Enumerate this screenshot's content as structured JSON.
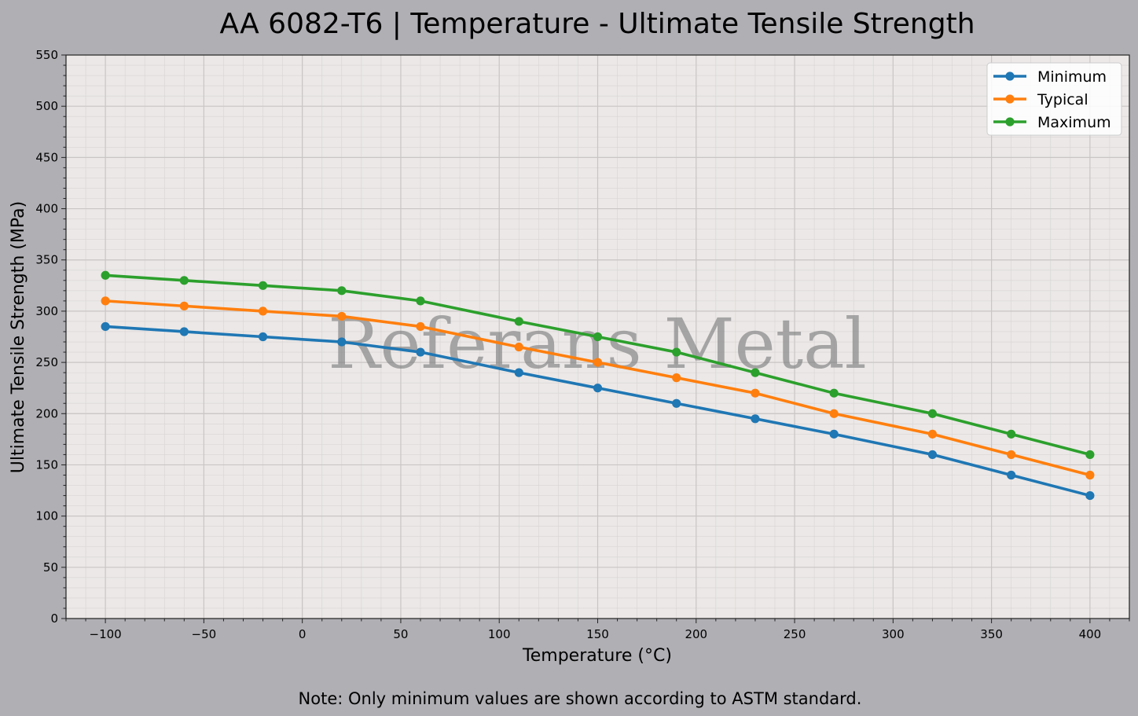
{
  "chart_data": {
    "type": "line",
    "title": "AA 6082-T6 | Temperature - Ultimate Tensile Strength",
    "xlabel": "Temperature (°C)",
    "ylabel": "Ultimate Tensile Strength (MPa)",
    "xlim": [
      -120,
      420
    ],
    "ylim": [
      0,
      550
    ],
    "x_ticks": [
      -100,
      -50,
      0,
      50,
      100,
      150,
      200,
      250,
      300,
      350,
      400
    ],
    "x_tick_labels": [
      "−100",
      "−50",
      "0",
      "50",
      "100",
      "150",
      "200",
      "250",
      "300",
      "350",
      "400"
    ],
    "y_ticks": [
      0,
      50,
      100,
      150,
      200,
      250,
      300,
      350,
      400,
      450,
      500,
      550
    ],
    "y_tick_labels": [
      "0",
      "50",
      "100",
      "150",
      "200",
      "250",
      "300",
      "350",
      "400",
      "450",
      "500",
      "550"
    ],
    "x": [
      -100,
      -60,
      -20,
      20,
      60,
      110,
      150,
      190,
      230,
      270,
      320,
      360,
      400
    ],
    "series": [
      {
        "name": "Minimum",
        "color": "#1f77b4",
        "values": [
          285,
          280,
          275,
          270,
          260,
          240,
          225,
          210,
          195,
          180,
          160,
          140,
          120
        ]
      },
      {
        "name": "Typical",
        "color": "#ff7f0e",
        "values": [
          310,
          305,
          300,
          295,
          285,
          265,
          250,
          235,
          220,
          200,
          180,
          160,
          140
        ]
      },
      {
        "name": "Maximum",
        "color": "#2ca02c",
        "values": [
          335,
          330,
          325,
          320,
          310,
          290,
          275,
          260,
          240,
          220,
          200,
          180,
          160
        ]
      }
    ],
    "grid": true,
    "legend_position": "top-right",
    "watermark": "Referans Metal",
    "note": "Note: Only minimum values are shown according to ASTM standard."
  }
}
